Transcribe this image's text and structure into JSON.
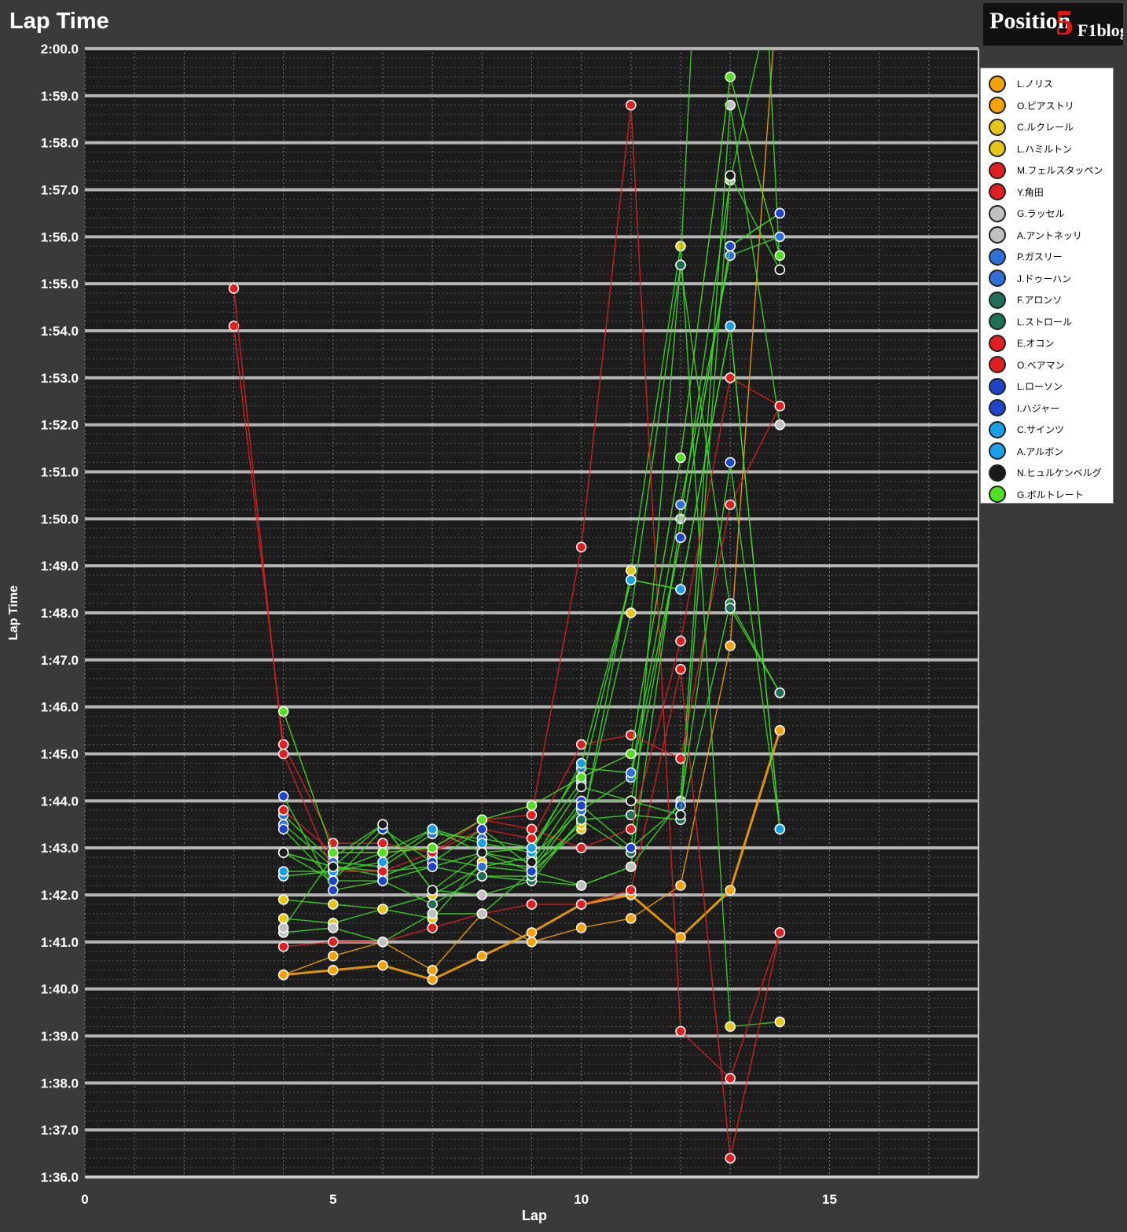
{
  "brand": {
    "logo_pre": "Position",
    "logo_num": "5",
    "logo_post": "F1blog"
  },
  "chart_data": {
    "type": "line",
    "title": "Lap Time",
    "xlabel": "Lap",
    "ylabel": "Lap Time",
    "xlim": [
      0,
      18
    ],
    "ylim": [
      96,
      120
    ],
    "x_ticks": [
      0,
      5,
      10,
      15
    ],
    "x_tick_labels": [
      "0",
      "5",
      "10",
      "15"
    ],
    "y_ticks": [
      96,
      97,
      98,
      99,
      100,
      101,
      102,
      103,
      104,
      105,
      106,
      107,
      108,
      109,
      110,
      111,
      112,
      113,
      114,
      115,
      116,
      117,
      118,
      119,
      120
    ],
    "y_tick_labels": [
      "1:36.0",
      "1:37.0",
      "1:38.0",
      "1:39.0",
      "1:40.0",
      "1:41.0",
      "1:42.0",
      "1:43.0",
      "1:44.0",
      "1:45.0",
      "1:46.0",
      "1:47.0",
      "1:48.0",
      "1:49.0",
      "1:50.0",
      "1:51.0",
      "1:52.0",
      "1:53.0",
      "1:54.0",
      "1:55.0",
      "1:56.0",
      "1:57.0",
      "1:58.0",
      "1:59.0",
      "2:00.0"
    ],
    "grid": true,
    "legend_position": "right",
    "series": [
      {
        "name": "L.ノリス",
        "color": "#f5a10a",
        "icon": "mclaren-icon",
        "x": [
          4,
          5,
          6,
          7,
          8,
          9,
          10,
          11,
          12,
          13,
          14
        ],
        "y": [
          100.3,
          100.4,
          100.5,
          100.2,
          100.7,
          101.2,
          101.8,
          102.0,
          101.1,
          102.1,
          105.5
        ]
      },
      {
        "name": "O.ピアストリ",
        "color": "#f5a10a",
        "icon": "mclaren-icon",
        "x": [
          4,
          5,
          6,
          7,
          8,
          9,
          10,
          11,
          12,
          13,
          14
        ],
        "y": [
          100.3,
          100.7,
          101.0,
          100.4,
          101.6,
          101.0,
          101.3,
          101.5,
          102.2,
          107.3,
          122.0
        ]
      },
      {
        "name": "C.ルクレール",
        "color": "#e8c51a",
        "icon": "ferrari-icon",
        "x": [
          4,
          5,
          6,
          7,
          8,
          9,
          10,
          11,
          12,
          13,
          14
        ],
        "y": [
          101.9,
          101.8,
          101.7,
          102.0,
          102.6,
          102.5,
          103.4,
          108.9,
          115.8,
          99.2,
          99.3
        ]
      },
      {
        "name": "L.ハミルトン",
        "color": "#e8c51a",
        "icon": "ferrari-icon",
        "x": [
          4,
          5,
          6,
          7,
          8,
          9,
          10,
          11,
          12,
          13,
          14
        ],
        "y": [
          101.5,
          101.4,
          101.7,
          101.5,
          102.7,
          102.6,
          103.5,
          108.0,
          115.4,
          136.8,
          115.3
        ]
      },
      {
        "name": "M.フェルスタッペン",
        "color": "#e02020",
        "icon": "redbull-icon",
        "x": [
          3,
          4,
          5,
          6,
          7,
          8,
          9,
          10,
          11,
          12,
          13,
          14
        ],
        "y": [
          114.1,
          105.2,
          103.1,
          103.1,
          102.9,
          103.6,
          103.7,
          109.4,
          118.8,
          99.1,
          98.1,
          101.2
        ]
      },
      {
        "name": "Y.角田",
        "color": "#e02020",
        "icon": "redbull-icon",
        "x": [
          4,
          5,
          6,
          7,
          8,
          9,
          10,
          11,
          12,
          13,
          14
        ],
        "y": [
          100.9,
          101.0,
          101.0,
          101.3,
          101.6,
          101.8,
          101.8,
          102.1,
          106.8,
          96.4,
          101.2
        ]
      },
      {
        "name": "G.ラッセル",
        "color": "#c0c0c0",
        "icon": "mercedes-icon",
        "x": [
          4,
          5,
          6,
          7,
          8,
          9,
          10,
          11,
          12,
          13,
          14
        ],
        "y": [
          101.2,
          101.3,
          101.0,
          101.6,
          101.6,
          102.5,
          102.2,
          102.6,
          104.0,
          118.8,
          112.0
        ]
      },
      {
        "name": "A.アントネッリ",
        "color": "#c0c0c0",
        "icon": "mercedes-icon",
        "x": [
          4,
          5,
          6,
          7,
          8,
          9,
          10,
          11,
          12,
          13,
          14
        ],
        "y": [
          101.3,
          102.8,
          103.5,
          102.1,
          102.0,
          102.3,
          102.2,
          102.6,
          110.0,
          117.2,
          122.0
        ]
      },
      {
        "name": "P.ガスリー",
        "color": "#2f6fd8",
        "icon": "alpine-icon",
        "x": [
          4,
          5,
          6,
          7,
          8,
          9,
          10,
          11,
          12,
          13,
          14
        ],
        "y": [
          103.5,
          102.6,
          102.4,
          102.8,
          102.6,
          102.8,
          103.8,
          104.5,
          109.6,
          115.8,
          116.5
        ]
      },
      {
        "name": "J.ドゥーハン",
        "color": "#2f6fd8",
        "icon": "alpine-icon",
        "x": [
          4,
          5,
          6,
          7,
          8,
          9,
          10,
          11,
          12,
          13,
          14
        ],
        "y": [
          103.7,
          102.7,
          102.6,
          103.3,
          103.2,
          103.0,
          104.7,
          104.6,
          110.3,
          115.6,
          116.0
        ]
      },
      {
        "name": "F.アロンソ",
        "color": "#1f6e57",
        "icon": "astonmartin-icon",
        "x": [
          4,
          5,
          6,
          7,
          8,
          9,
          10,
          11,
          12,
          13,
          14
        ],
        "y": [
          102.9,
          102.3,
          102.3,
          101.8,
          102.4,
          102.3,
          103.6,
          103.7,
          103.6,
          108.2,
          106.3
        ]
      },
      {
        "name": "L.ストロール",
        "color": "#1f6e57",
        "icon": "astonmartin-icon",
        "x": [
          4,
          5,
          6,
          7,
          8,
          9,
          10,
          11,
          12,
          13,
          14
        ],
        "y": [
          102.9,
          102.6,
          102.5,
          102.6,
          102.4,
          102.4,
          103.6,
          102.9,
          115.4,
          108.1,
          106.3
        ]
      },
      {
        "name": "E.オコン",
        "color": "#e02020",
        "icon": "haas-icon",
        "x": [
          3,
          4,
          5,
          6,
          7,
          8,
          9,
          10,
          11,
          12,
          13,
          14
        ],
        "y": [
          114.9,
          105.0,
          102.5,
          102.5,
          102.9,
          103.4,
          103.2,
          105.2,
          105.4,
          104.9,
          110.3,
          112.4
        ]
      },
      {
        "name": "O.ベアマン",
        "color": "#e02020",
        "icon": "haas-icon",
        "x": [
          4,
          5,
          6,
          7,
          8,
          9,
          10,
          11,
          12,
          13,
          14
        ],
        "y": [
          103.8,
          102.9,
          102.9,
          103.0,
          103.6,
          103.4,
          103.0,
          103.4,
          107.4,
          113.0,
          112.4
        ]
      },
      {
        "name": "L.ローソン",
        "color": "#2044c8",
        "icon": "racingbulls-icon",
        "x": [
          4,
          5,
          6,
          7,
          8,
          9,
          10,
          11,
          12,
          13,
          14
        ],
        "y": [
          103.4,
          102.3,
          103.4,
          102.7,
          103.4,
          102.6,
          104.0,
          104.0,
          109.6,
          115.8,
          116.5
        ]
      },
      {
        "name": "I.ハジャー",
        "color": "#2044c8",
        "icon": "racingbulls-icon",
        "x": [
          4,
          5,
          6,
          7,
          8,
          9,
          10,
          11,
          12,
          13,
          14
        ],
        "y": [
          104.1,
          102.1,
          102.3,
          102.6,
          102.9,
          102.5,
          103.9,
          103.0,
          103.9,
          111.2,
          103.4
        ]
      },
      {
        "name": "C.サインツ",
        "color": "#1aa0e8",
        "icon": "williams-icon",
        "x": [
          4,
          5,
          6,
          7,
          8,
          9,
          10,
          11,
          12,
          13,
          14
        ],
        "y": [
          102.4,
          102.5,
          102.9,
          103.4,
          103.1,
          102.9,
          104.8,
          108.7,
          108.5,
          114.1,
          103.4
        ]
      },
      {
        "name": "A.アルボン",
        "color": "#1aa0e8",
        "icon": "williams-icon",
        "x": [
          4,
          5,
          6,
          7,
          8,
          9,
          10,
          11,
          12,
          13,
          14
        ],
        "y": [
          102.5,
          102.5,
          102.7,
          103.4,
          102.9,
          103.0,
          104.4,
          108.7,
          108.5,
          114.1,
          103.4
        ]
      },
      {
        "name": "N.ヒュルケンベルグ",
        "color": "#1a1a1a",
        "icon": "sauber-icon",
        "x": [
          4,
          5,
          6,
          7,
          8,
          9,
          10,
          11,
          12,
          13,
          14
        ],
        "y": [
          102.9,
          102.6,
          103.5,
          102.1,
          102.9,
          102.7,
          104.3,
          104.0,
          103.7,
          117.3,
          115.3
        ]
      },
      {
        "name": "G.ボルトレート",
        "color": "#52e020",
        "icon": "sauber-icon",
        "x": [
          4,
          5,
          6,
          7,
          8,
          9,
          10,
          11,
          12,
          13,
          14
        ],
        "y": [
          105.9,
          102.9,
          102.9,
          103.0,
          103.6,
          103.9,
          104.5,
          105.0,
          111.3,
          119.4,
          115.6
        ]
      }
    ]
  }
}
